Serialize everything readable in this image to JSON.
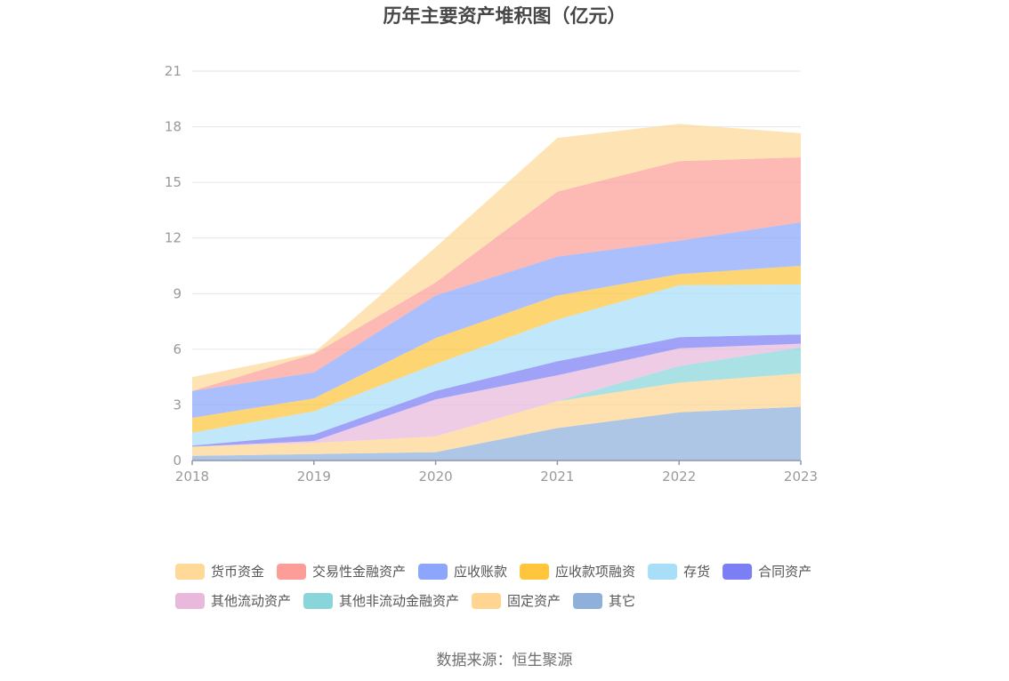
{
  "chart_data": {
    "type": "area",
    "stacked": true,
    "title": "历年主要资产堆积图（亿元）",
    "xlabel": "",
    "ylabel": "",
    "x": [
      "2018",
      "2019",
      "2020",
      "2021",
      "2022",
      "2023"
    ],
    "ylim": [
      0,
      21
    ],
    "yticks": [
      "0",
      "3",
      "6",
      "9",
      "12",
      "15",
      "18",
      "21"
    ],
    "grid": true,
    "legend_position": "bottom",
    "series": [
      {
        "name": "其它",
        "color": "#8fb0db",
        "values": [
          0.25,
          0.35,
          0.45,
          1.75,
          2.6,
          2.9
        ]
      },
      {
        "name": "固定资产",
        "color": "#ffd591",
        "values": [
          0.5,
          0.6,
          0.85,
          1.45,
          1.6,
          1.8
        ]
      },
      {
        "name": "其他非流动金融资产",
        "color": "#88d6da",
        "values": [
          0.0,
          0.0,
          0.0,
          0.0,
          0.9,
          1.4
        ]
      },
      {
        "name": "其他流动资产",
        "color": "#e8b9dc",
        "values": [
          0.0,
          0.1,
          2.0,
          1.4,
          0.95,
          0.2
        ]
      },
      {
        "name": "合同资产",
        "color": "#7b7ef5",
        "values": [
          0.05,
          0.35,
          0.45,
          0.75,
          0.6,
          0.5
        ]
      },
      {
        "name": "存货",
        "color": "#a8def8",
        "values": [
          0.7,
          1.25,
          1.45,
          2.25,
          2.8,
          2.7
        ]
      },
      {
        "name": "应收款项融资",
        "color": "#fec53d",
        "values": [
          0.8,
          0.7,
          1.4,
          1.3,
          0.6,
          1.0
        ]
      },
      {
        "name": "应收账款",
        "color": "#8ba6fb",
        "values": [
          1.45,
          1.4,
          2.3,
          2.1,
          1.8,
          2.35
        ]
      },
      {
        "name": "交易性金融资产",
        "color": "#fc9e97",
        "values": [
          0.0,
          1.0,
          0.7,
          3.5,
          4.3,
          3.5
        ]
      },
      {
        "name": "货币资金",
        "color": "#fed997",
        "values": [
          0.75,
          0.05,
          1.9,
          2.9,
          2.0,
          1.3
        ]
      }
    ],
    "legend_order": [
      "货币资金",
      "交易性金融资产",
      "应收账款",
      "应收款项融资",
      "存货",
      "合同资产",
      "其他流动资产",
      "其他非流动金融资产",
      "固定资产",
      "其它"
    ]
  },
  "source": "数据来源：恒生聚源"
}
